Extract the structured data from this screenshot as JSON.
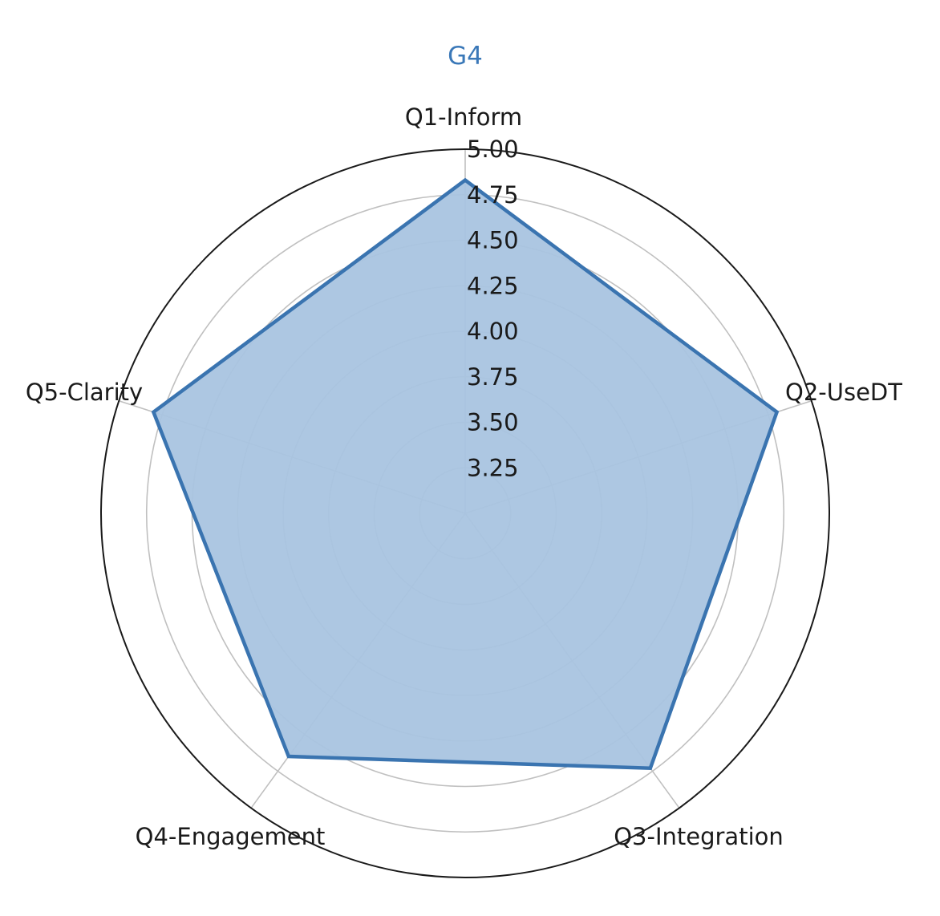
{
  "chart_data": {
    "type": "radar",
    "title": "G4",
    "axes": [
      "Q1-Inform",
      "Q2-UseDT",
      "Q3-Integration",
      "Q4-Engagement",
      "Q5-Clarity"
    ],
    "series": [
      {
        "values": [
          4.83,
          4.8,
          4.73,
          4.65,
          4.8
        ]
      }
    ],
    "rlim": [
      3.0,
      5.0
    ],
    "rticks": [
      3.25,
      3.5,
      3.75,
      4.0,
      4.25,
      4.5,
      4.75,
      5.0
    ],
    "rtick_labels": [
      "3.25",
      "3.50",
      "3.75",
      "4.00",
      "4.25",
      "4.50",
      "4.75",
      "5.00"
    ],
    "grid": true,
    "colors": {
      "line": "#3a74b0",
      "fill": "#a9c4e0",
      "title": "#3a78b8",
      "grid": "#c0c0c0",
      "outer": "#1a1a1a"
    }
  }
}
